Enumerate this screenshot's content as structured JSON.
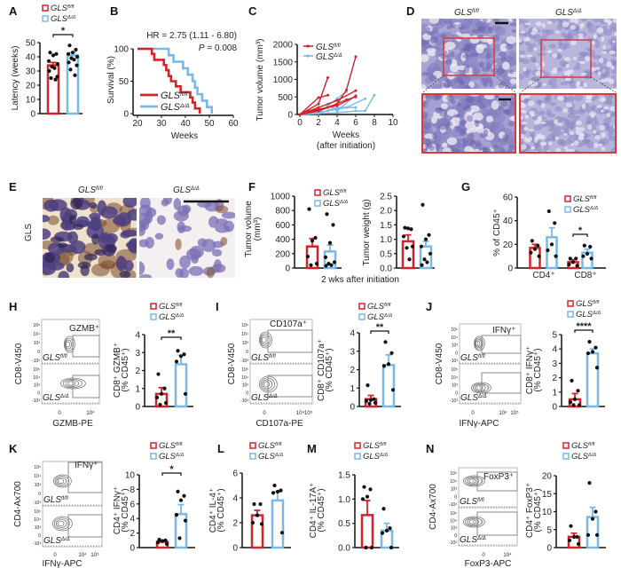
{
  "colors": {
    "fl": "#d2232a",
    "dd": "#7ab8e6",
    "points": "#111111",
    "gate": "#888888",
    "inset": "#d83a3a"
  },
  "legend": {
    "fl": {
      "base": "GLS",
      "sup": "fl/fl"
    },
    "dd": {
      "base": "GLS",
      "sup": "Δ/Δ"
    }
  },
  "panels": {
    "A": "A",
    "B": "B",
    "C": "C",
    "D": "D",
    "E": "E",
    "F": "F",
    "G": "G",
    "H": "H",
    "I": "I",
    "J": "J",
    "K": "K",
    "L": "L",
    "M": "M",
    "N": "N"
  },
  "images": {
    "D": {
      "titles": [
        "fl",
        "dd"
      ],
      "note": "H&E tumor histology with magnified insets"
    },
    "E": {
      "row_label": "GLS",
      "titles": [
        "fl",
        "dd"
      ]
    }
  },
  "F_caption": "2 wks after initiation",
  "flow": {
    "H": {
      "gate_label": "GZMB⁺",
      "ylabel": "CD8-V450",
      "xlabel": "GZMB-PE",
      "yticks": [
        "10⁵",
        "10⁴",
        "10³",
        "0",
        "-10³"
      ],
      "xticks": [
        "0",
        "10⁴"
      ]
    },
    "I": {
      "gate_label": "CD107a⁺",
      "ylabel": "CD8-V450",
      "xlabel": "CD107a-PE",
      "yticks": [
        "10⁵",
        "10⁴",
        "10³",
        "0",
        "-10³"
      ],
      "xticks": [
        "0",
        "10⁴10⁵"
      ]
    },
    "J": {
      "gate_label": "IFNγ⁺",
      "ylabel": "CD8-V450",
      "xlabel": "IFNγ-APC",
      "yticks": [
        "10⁵",
        "10⁴",
        "10³",
        "0",
        "-10³"
      ],
      "xticks": [
        "0",
        "10⁴",
        "10⁵"
      ]
    },
    "K": {
      "gate_label": "IFNγ⁺",
      "ylabel": "CD4-Ax700",
      "xlabel": "IFNγ-APC",
      "yticks": [
        "10⁵",
        "10⁴",
        "10³",
        "0",
        "-10³"
      ],
      "xticks": [
        "0",
        "10⁴",
        "10⁵"
      ]
    },
    "N": {
      "gate_label": "FoxP3⁺",
      "ylabel": "CD4-Ax700",
      "xlabel": "FoxP3-APC",
      "yticks": [
        "10⁵",
        "10⁴",
        "10³",
        "0",
        "-10³"
      ],
      "xticks": [
        "0",
        "10⁴"
      ]
    }
  },
  "chart_data": [
    {
      "id": "A",
      "type": "bar",
      "ylabel": [
        "Latency (weeks)"
      ],
      "ylim": [
        0,
        50
      ],
      "yticks": [
        "0",
        "10",
        "20",
        "30",
        "40",
        "50"
      ],
      "bars": [
        {
          "group": "fl",
          "mean": 34,
          "sem": 2,
          "points": [
            43,
            42,
            41,
            37,
            35,
            33,
            32,
            30,
            26,
            25,
            24
          ]
        },
        {
          "group": "dd",
          "mean": 41,
          "sem": 2,
          "points": [
            48,
            45,
            43,
            42,
            40,
            39,
            38,
            36,
            34,
            31,
            27
          ]
        }
      ],
      "significance": [
        {
          "text": "*",
          "between": [
            0,
            1
          ]
        }
      ]
    },
    {
      "id": "B",
      "type": "line",
      "subtype": "kaplan-meier",
      "xlabel": "Weeks",
      "ylabel": "Survival (%)",
      "xlim": [
        20,
        60
      ],
      "ylim": [
        0,
        100
      ],
      "xticks": [
        "20",
        "30",
        "40",
        "50",
        "60"
      ],
      "yticks": [
        "0",
        "50",
        "100"
      ],
      "annotation": "HR = 2.75 (1.11 - 6.80)",
      "p_label": "P",
      "p_text": " = 0.008",
      "series": [
        {
          "group": "fl",
          "points": [
            [
              20,
              100
            ],
            [
              26,
              100
            ],
            [
              26,
              92
            ],
            [
              27,
              92
            ],
            [
              27,
              83
            ],
            [
              31,
              83
            ],
            [
              31,
              75
            ],
            [
              32,
              75
            ],
            [
              32,
              67
            ],
            [
              33,
              67
            ],
            [
              33,
              58
            ],
            [
              34,
              58
            ],
            [
              34,
              50
            ],
            [
              36,
              50
            ],
            [
              36,
              42
            ],
            [
              38,
              42
            ],
            [
              38,
              33
            ],
            [
              42,
              33
            ],
            [
              42,
              25
            ],
            [
              43,
              25
            ],
            [
              43,
              17
            ],
            [
              44,
              17
            ],
            [
              44,
              8
            ],
            [
              46,
              8
            ],
            [
              46,
              0
            ]
          ]
        },
        {
          "group": "dd",
          "points": [
            [
              20,
              100
            ],
            [
              33,
              100
            ],
            [
              33,
              90
            ],
            [
              35,
              90
            ],
            [
              35,
              80
            ],
            [
              39,
              80
            ],
            [
              39,
              70
            ],
            [
              41,
              70
            ],
            [
              41,
              60
            ],
            [
              43,
              60
            ],
            [
              43,
              50
            ],
            [
              44,
              50
            ],
            [
              44,
              40
            ],
            [
              45,
              40
            ],
            [
              45,
              30
            ],
            [
              47,
              30
            ],
            [
              47,
              20
            ],
            [
              49,
              20
            ],
            [
              49,
              10
            ],
            [
              51,
              10
            ],
            [
              51,
              0
            ]
          ]
        }
      ]
    },
    {
      "id": "C",
      "type": "line",
      "xlabel": [
        "Weeks",
        "(after initiation)"
      ],
      "ylabel": "Tumor volume (mm³)",
      "xlim": [
        0,
        10
      ],
      "ylim": [
        0,
        2000
      ],
      "xticks": [
        "0",
        "2",
        "4",
        "6",
        "8",
        "10"
      ],
      "yticks": [
        "0",
        "500",
        "1000",
        "1500",
        "2000"
      ],
      "series": [
        {
          "group": "fl",
          "lines": [
            [
              [
                0,
                0
              ],
              [
                2,
                300
              ],
              [
                3,
                1050
              ]
            ],
            [
              [
                0,
                0
              ],
              [
                2,
                480
              ],
              [
                3,
                550
              ]
            ],
            [
              [
                0,
                0
              ],
              [
                2,
                100
              ],
              [
                4,
                300
              ],
              [
                5,
                700
              ],
              [
                6,
                1650
              ]
            ],
            [
              [
                0,
                0
              ],
              [
                2,
                200
              ],
              [
                4,
                400
              ],
              [
                6,
                680
              ]
            ],
            [
              [
                0,
                0
              ],
              [
                3,
                200
              ],
              [
                5,
                420
              ],
              [
                6,
                500
              ]
            ],
            [
              [
                0,
                0
              ],
              [
                1,
                100
              ],
              [
                2,
                150
              ],
              [
                4,
                250
              ],
              [
                6,
                520
              ]
            ]
          ]
        },
        {
          "group": "dd",
          "lines": [
            [
              [
                0,
                0
              ],
              [
                2,
                50
              ],
              [
                4,
                450
              ],
              [
                5,
                650
              ]
            ],
            [
              [
                0,
                0
              ],
              [
                3,
                100
              ],
              [
                5,
                200
              ],
              [
                7,
                450
              ]
            ],
            [
              [
                0,
                0
              ],
              [
                4,
                50
              ],
              [
                6,
                100
              ],
              [
                7,
                100
              ],
              [
                8,
                550
              ]
            ],
            [
              [
                0,
                0
              ],
              [
                2,
                30
              ],
              [
                4,
                200
              ],
              [
                6,
                200
              ]
            ],
            [
              [
                0,
                0
              ],
              [
                3,
                300
              ],
              [
                4,
                100
              ],
              [
                6,
                550
              ]
            ]
          ]
        }
      ]
    },
    {
      "id": "F1",
      "type": "bar",
      "ylabel": [
        "Tumor volume",
        "(mm³)"
      ],
      "ylim": [
        0,
        1000
      ],
      "yticks": [
        "0",
        "200",
        "400",
        "600",
        "800",
        "1000"
      ],
      "bars": [
        {
          "group": "fl",
          "mean": 300,
          "sem": 110,
          "points": [
            820,
            420,
            380,
            160,
            60,
            40
          ]
        },
        {
          "group": "dd",
          "mean": 230,
          "sem": 90,
          "points": [
            750,
            600,
            350,
            150,
            80,
            60,
            40,
            30
          ]
        }
      ]
    },
    {
      "id": "F2",
      "type": "bar",
      "ylabel": [
        "Tumor weight (g)"
      ],
      "ylim": [
        0,
        2.5
      ],
      "yticks": [
        "0.0",
        "0.5",
        "1.0",
        "1.5",
        "2.0",
        "2.5"
      ],
      "bars": [
        {
          "group": "fl",
          "mean": 0.93,
          "sem": 0.22,
          "points": [
            1.4,
            1.35,
            1.38,
            1.1,
            0.75,
            0.7,
            0.3
          ]
        },
        {
          "group": "dd",
          "mean": 0.75,
          "sem": 0.18,
          "points": [
            2.2,
            1.15,
            1.0,
            0.75,
            0.5,
            0.3,
            0.2,
            0.1
          ]
        }
      ]
    },
    {
      "id": "G",
      "type": "bar",
      "ylabel": [
        "% of CD45⁺"
      ],
      "ylim": [
        0,
        60
      ],
      "yticks": [
        "0",
        "20",
        "40",
        "60"
      ],
      "categories": [
        "CD4⁺",
        "CD8⁺"
      ],
      "bars": [
        {
          "category": 0,
          "group": "fl",
          "mean": 17,
          "sem": 3,
          "points": [
            23,
            19,
            16,
            13,
            10
          ]
        },
        {
          "category": 0,
          "group": "dd",
          "mean": 26,
          "sem": 8,
          "points": [
            48,
            38,
            20,
            15,
            10
          ]
        },
        {
          "category": 1,
          "group": "fl",
          "mean": 5,
          "sem": 2,
          "points": [
            8,
            8,
            5,
            3,
            2
          ]
        },
        {
          "category": 1,
          "group": "dd",
          "mean": 13,
          "sem": 3,
          "points": [
            19,
            18,
            12,
            10,
            8
          ]
        }
      ],
      "significance": [
        {
          "text": "*",
          "between": [
            2,
            3
          ]
        }
      ]
    },
    {
      "id": "H",
      "type": "bar",
      "ylabel": [
        "CD8⁺ GZMB⁺",
        "(% CD45⁺)"
      ],
      "ylim": [
        0,
        4
      ],
      "yticks": [
        "0",
        "1",
        "2",
        "3",
        "4"
      ],
      "bars": [
        {
          "group": "fl",
          "mean": 0.7,
          "sem": 0.35,
          "points": [
            1.8,
            1.0,
            0.7,
            0.5,
            0.2,
            0.1
          ]
        },
        {
          "group": "dd",
          "mean": 2.35,
          "sem": 0.5,
          "points": [
            3.1,
            2.9,
            2.8,
            2.5,
            0.7
          ]
        }
      ],
      "significance": [
        {
          "text": "**",
          "between": [
            0,
            1
          ]
        }
      ]
    },
    {
      "id": "I",
      "type": "bar",
      "ylabel": [
        "CD8⁺ CD107a⁺",
        "(% CD45⁺)"
      ],
      "ylim": [
        0,
        4
      ],
      "yticks": [
        "0",
        "1",
        "2",
        "3",
        "4"
      ],
      "bars": [
        {
          "group": "fl",
          "mean": 0.4,
          "sem": 0.2,
          "points": [
            1.15,
            0.4,
            0.35,
            0.3,
            0.2,
            0.15
          ]
        },
        {
          "group": "dd",
          "mean": 2.25,
          "sem": 0.55,
          "points": [
            3.5,
            2.9,
            2.3,
            2.2,
            0.9
          ]
        }
      ],
      "significance": [
        {
          "text": "**",
          "between": [
            0,
            1
          ]
        }
      ]
    },
    {
      "id": "J",
      "type": "bar",
      "ylabel": [
        "CD8⁺ IFNγ⁺",
        "(% CD45⁺)"
      ],
      "ylim": [
        0,
        5
      ],
      "yticks": [
        "0",
        "1",
        "2",
        "3",
        "4",
        "5"
      ],
      "bars": [
        {
          "group": "fl",
          "mean": 0.5,
          "sem": 0.4,
          "points": [
            1.8,
            1.1,
            0.5,
            0.3,
            0.1,
            0.1
          ]
        },
        {
          "group": "dd",
          "mean": 3.7,
          "sem": 0.3,
          "points": [
            4.5,
            4.1,
            3.8,
            3.7,
            2.7
          ]
        }
      ],
      "significance": [
        {
          "text": "****",
          "between": [
            0,
            1
          ]
        }
      ]
    },
    {
      "id": "K",
      "type": "bar",
      "ylabel": [
        "CD4⁺ IFNγ⁺",
        "(% CD45⁺)"
      ],
      "ylim": [
        0,
        10
      ],
      "yticks": [
        "0",
        "2",
        "4",
        "6",
        "8",
        "10"
      ],
      "bars": [
        {
          "group": "fl",
          "mean": 0.8,
          "sem": 0.2,
          "points": [
            1.1,
            1.0,
            0.9,
            0.7,
            0.5
          ]
        },
        {
          "group": "dd",
          "mean": 4.6,
          "sem": 1.3,
          "points": [
            7.7,
            7.1,
            6.5,
            4.5,
            3.7,
            1.3
          ]
        }
      ],
      "significance": [
        {
          "text": "*",
          "between": [
            0,
            1
          ]
        }
      ]
    },
    {
      "id": "L",
      "type": "bar",
      "ylabel": [
        "CD4⁺ IL-4⁺",
        "(% CD45⁺)"
      ],
      "ylim": [
        0,
        6
      ],
      "yticks": [
        "0",
        "2",
        "4",
        "6"
      ],
      "bars": [
        {
          "group": "fl",
          "mean": 2.6,
          "sem": 0.4,
          "points": [
            3.5,
            3.5,
            2.6,
            2.0,
            1.9
          ]
        },
        {
          "group": "dd",
          "mean": 3.8,
          "sem": 0.7,
          "points": [
            5.0,
            4.6,
            4.5,
            4.4,
            1.2
          ]
        }
      ]
    },
    {
      "id": "M",
      "type": "bar",
      "ylabel": [
        "CD4⁺ IL-17A⁺",
        "(% CD45⁺)"
      ],
      "ylim": [
        0,
        1.5
      ],
      "yticks": [
        "0.0",
        "0.5",
        "1.0",
        "1.5"
      ],
      "bars": [
        {
          "group": "fl",
          "mean": 0.67,
          "sem": 0.3,
          "points": [
            1.25,
            1.2,
            1.05,
            1.0,
            0.0,
            0.0
          ]
        },
        {
          "group": "dd",
          "mean": 0.35,
          "sem": 0.15,
          "points": [
            0.8,
            0.4,
            0.35,
            0.3,
            0.0
          ]
        }
      ]
    },
    {
      "id": "N",
      "type": "bar",
      "ylabel": [
        "CD4⁺ FoxP3⁺",
        "(% CD45⁺)"
      ],
      "ylim": [
        0,
        20
      ],
      "yticks": [
        "0",
        "5",
        "10",
        "15",
        "20"
      ],
      "bars": [
        {
          "group": "fl",
          "mean": 3,
          "sem": 1,
          "points": [
            6,
            3,
            3,
            2,
            1
          ]
        },
        {
          "group": "dd",
          "mean": 8.5,
          "sem": 2.7,
          "points": [
            18,
            10,
            8,
            3.5,
            3.5
          ]
        }
      ]
    }
  ]
}
